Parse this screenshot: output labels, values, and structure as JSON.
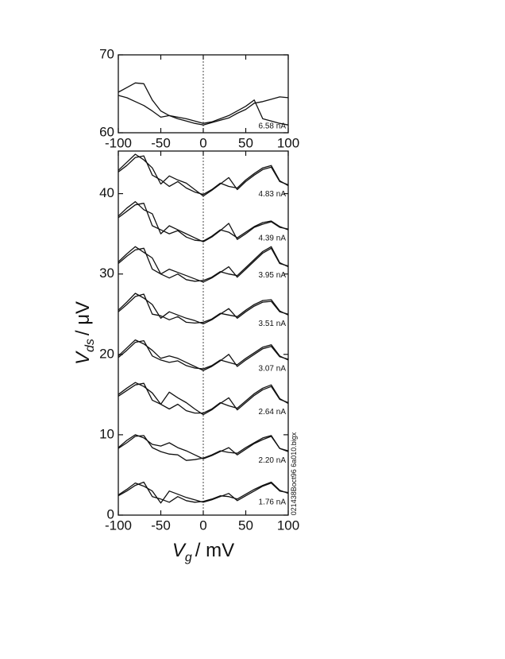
{
  "chart_data": [
    {
      "type": "line",
      "x": [
        -100,
        -90,
        -80,
        -70,
        -60,
        -50,
        -40,
        -30,
        -20,
        -10,
        0,
        10,
        20,
        30,
        40,
        50,
        60,
        70,
        80,
        90,
        100
      ],
      "xlim": [
        -100,
        100
      ],
      "xticks": [
        -100,
        -50,
        0,
        50,
        100
      ],
      "ylim": [
        60,
        70
      ],
      "yticks": [
        60,
        70
      ],
      "zero_line": true,
      "series": [
        {
          "name": "6.58 nA",
          "color": "#111111",
          "values": [
            65.2,
            65.8,
            66.4,
            66.3,
            64.2,
            62.8,
            62.2,
            62.0,
            61.8,
            61.5,
            61.2,
            61.4,
            61.8,
            62.2,
            62.8,
            63.4,
            64.2,
            61.8,
            61.5,
            61.2,
            61.0
          ],
          "values_back": [
            64.8,
            64.5,
            64.0,
            63.5,
            62.8,
            62.0,
            62.2,
            61.8,
            61.5,
            61.2,
            61.0,
            61.3,
            61.6,
            61.9,
            62.5,
            63.0,
            63.8,
            64.0,
            64.3,
            64.6,
            64.5
          ]
        }
      ]
    },
    {
      "type": "line",
      "x": [
        -100,
        -90,
        -80,
        -70,
        -60,
        -50,
        -40,
        -30,
        -20,
        -10,
        0,
        10,
        20,
        30,
        40,
        50,
        60,
        70,
        80,
        90,
        100
      ],
      "xlim": [
        -100,
        100
      ],
      "xticks": [
        -100,
        -50,
        0,
        50,
        100
      ],
      "ylim": [
        0,
        45.3
      ],
      "yticks": [
        0,
        10,
        20,
        30,
        40
      ],
      "zero_line": true,
      "x_label": {
        "symbol": "V",
        "subscript": "g",
        "unit": "/ mV"
      },
      "y_label": {
        "symbol": "V",
        "subscript": "ds",
        "unit": "/ μV"
      },
      "annotation": "021438Boct96 6a010.bigx",
      "series": [
        {
          "name": "4.83 nA",
          "color": "#111111",
          "values": [
            42.9,
            43.9,
            44.9,
            44.2,
            43.2,
            41.2,
            42.2,
            41.7,
            41.3,
            40.5,
            39.7,
            40.4,
            41.2,
            42.0,
            40.5,
            41.5,
            42.3,
            43.0,
            43.3,
            41.5,
            41.1
          ],
          "values_back": [
            42.7,
            43.5,
            44.5,
            44.7,
            42.3,
            41.7,
            40.9,
            41.5,
            40.7,
            40.2,
            39.9,
            40.5,
            41.3,
            40.9,
            40.7,
            41.7,
            42.5,
            43.2,
            43.5,
            41.6,
            41.0
          ]
        },
        {
          "name": "4.39 nA",
          "color": "#111111",
          "values": [
            37.2,
            38.2,
            39.0,
            38.0,
            37.5,
            35.0,
            36.0,
            35.5,
            35.0,
            34.5,
            34.0,
            34.6,
            35.4,
            36.3,
            34.3,
            35.0,
            35.8,
            36.2,
            36.5,
            35.8,
            35.6
          ],
          "values_back": [
            37.0,
            37.8,
            38.6,
            38.8,
            36.0,
            35.5,
            35.0,
            35.4,
            34.6,
            34.2,
            34.1,
            34.7,
            35.5,
            35.2,
            34.5,
            35.2,
            35.9,
            36.4,
            36.6,
            35.9,
            35.5
          ]
        },
        {
          "name": "3.95 nA",
          "color": "#111111",
          "values": [
            31.5,
            32.5,
            33.4,
            32.7,
            32.0,
            30.0,
            30.6,
            30.2,
            29.8,
            29.4,
            29.0,
            29.5,
            30.2,
            30.9,
            29.6,
            30.6,
            31.6,
            32.6,
            33.2,
            31.3,
            31.0
          ],
          "values_back": [
            31.3,
            32.2,
            33.0,
            33.2,
            30.6,
            30.0,
            29.5,
            30.0,
            29.3,
            29.1,
            29.2,
            29.6,
            30.3,
            30.0,
            29.8,
            30.8,
            31.8,
            32.8,
            33.4,
            31.4,
            30.9
          ]
        },
        {
          "name": "3.51 nA",
          "color": "#111111",
          "values": [
            25.5,
            26.5,
            27.6,
            27.0,
            26.2,
            24.5,
            25.3,
            24.9,
            24.5,
            24.2,
            23.8,
            24.3,
            25.0,
            25.7,
            24.5,
            25.3,
            26.0,
            26.5,
            26.6,
            25.3,
            25.0
          ],
          "values_back": [
            25.3,
            26.2,
            27.2,
            27.5,
            25.0,
            24.8,
            24.3,
            24.7,
            24.0,
            23.9,
            24.0,
            24.4,
            25.1,
            24.9,
            24.7,
            25.5,
            26.2,
            26.7,
            26.8,
            25.4,
            24.9
          ]
        },
        {
          "name": "3.07 nA",
          "color": "#111111",
          "values": [
            19.8,
            20.8,
            21.8,
            21.3,
            20.5,
            19.5,
            19.8,
            19.5,
            19.0,
            18.5,
            18.0,
            18.5,
            19.2,
            20.0,
            18.5,
            19.3,
            20.0,
            20.7,
            21.0,
            19.7,
            19.4
          ],
          "values_back": [
            19.6,
            20.5,
            21.5,
            21.7,
            19.8,
            19.3,
            19.0,
            19.2,
            18.6,
            18.3,
            18.2,
            18.6,
            19.3,
            19.0,
            18.7,
            19.5,
            20.2,
            20.9,
            21.2,
            19.8,
            19.3
          ]
        },
        {
          "name": "2.64 nA",
          "color": "#111111",
          "values": [
            15.0,
            15.8,
            16.5,
            16.0,
            15.2,
            13.8,
            15.3,
            14.6,
            14.0,
            13.2,
            12.5,
            13.1,
            13.9,
            14.6,
            13.1,
            14.0,
            14.9,
            15.6,
            16.0,
            14.4,
            14.0
          ],
          "values_back": [
            14.8,
            15.5,
            16.2,
            16.4,
            14.3,
            13.8,
            13.2,
            13.8,
            13.0,
            12.7,
            12.7,
            13.2,
            14.0,
            13.6,
            13.3,
            14.2,
            15.1,
            15.8,
            16.2,
            14.5,
            13.9
          ]
        },
        {
          "name": "2.20 nA",
          "color": "#111111",
          "values": [
            8.4,
            9.3,
            10.0,
            9.6,
            8.8,
            8.6,
            9.0,
            8.4,
            8.0,
            7.5,
            7.0,
            7.4,
            7.9,
            8.4,
            7.5,
            8.2,
            8.9,
            9.4,
            9.8,
            8.3,
            8.0
          ],
          "values_back": [
            8.3,
            9.0,
            9.8,
            9.9,
            8.4,
            7.9,
            7.6,
            7.5,
            6.8,
            6.9,
            7.1,
            7.5,
            8.0,
            7.8,
            7.7,
            8.4,
            9.0,
            9.6,
            9.9,
            8.3,
            7.9
          ]
        },
        {
          "name": "1.76 nA",
          "color": "#111111",
          "values": [
            2.5,
            3.2,
            4.0,
            3.6,
            3.0,
            1.5,
            3.0,
            2.6,
            2.2,
            1.9,
            1.6,
            1.9,
            2.3,
            2.7,
            1.8,
            2.4,
            3.0,
            3.6,
            4.0,
            3.0,
            2.8
          ],
          "values_back": [
            2.4,
            3.0,
            3.7,
            4.1,
            2.3,
            2.0,
            1.6,
            2.3,
            1.8,
            1.6,
            1.7,
            2.0,
            2.4,
            2.3,
            2.0,
            2.6,
            3.2,
            3.7,
            4.1,
            3.1,
            2.7
          ]
        }
      ]
    }
  ]
}
